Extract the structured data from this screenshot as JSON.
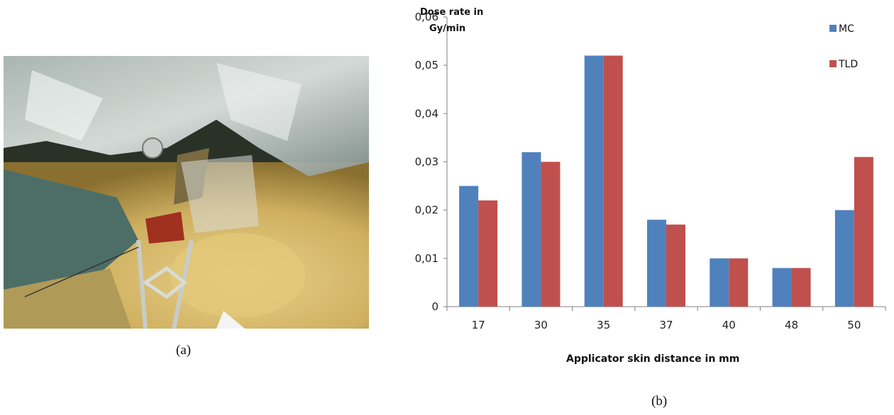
{
  "captions": {
    "a": "(a)",
    "b": "(b)"
  },
  "photo": {
    "description_icon": "surgical-photo"
  },
  "chart_data": {
    "type": "bar",
    "categories": [
      "17",
      "30",
      "35",
      "37",
      "40",
      "48",
      "50"
    ],
    "series": [
      {
        "name": "MC",
        "color": "#4F81BD",
        "values": [
          0.025,
          0.032,
          0.052,
          0.018,
          0.01,
          0.008,
          0.02
        ]
      },
      {
        "name": "TLD",
        "color": "#C0504D",
        "values": [
          0.022,
          0.03,
          0.052,
          0.017,
          0.01,
          0.008,
          0.031
        ]
      }
    ],
    "ylabel_line1": "Dose  rate in",
    "ylabel_line2": "Gy/min",
    "xlabel": "Applicator  skin distance in mm",
    "ylim": [
      0,
      0.06
    ],
    "yticks": [
      0,
      0.01,
      0.02,
      0.03,
      0.04,
      0.05,
      0.06
    ],
    "ytick_labels": [
      "0",
      "0,01",
      "0,02",
      "0,03",
      "0,04",
      "0,05",
      "0,06"
    ],
    "legend_position": "top-right",
    "grid": false
  }
}
